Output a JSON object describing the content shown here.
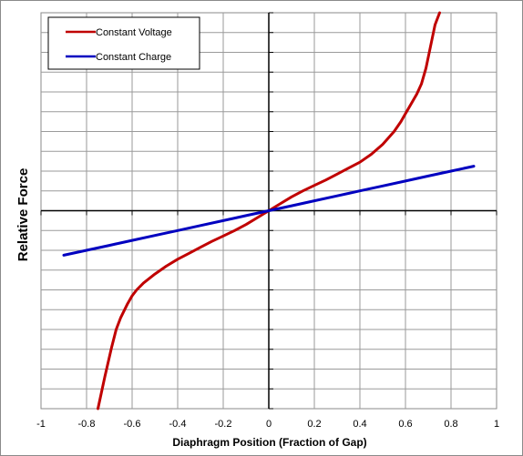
{
  "chart_data": {
    "type": "line",
    "title": "",
    "xlabel": "Diaphragm Position (Fraction of Gap)",
    "ylabel": "Relative Force",
    "xlim": [
      -1,
      1
    ],
    "ylim": [
      -1,
      1
    ],
    "x_ticks": [
      "-1",
      "-0.8",
      "-0.6",
      "-0.4",
      "-0.2",
      "0",
      "0.2",
      "0.4",
      "0.6",
      "0.8",
      "1"
    ],
    "grid": true,
    "legend_position": "top-left",
    "series": [
      {
        "name": "Constant Voltage",
        "color": "#c00000",
        "x": [
          -0.75,
          -0.72,
          -0.69,
          -0.67,
          -0.65,
          -0.62,
          -0.6,
          -0.58,
          -0.55,
          -0.5,
          -0.45,
          -0.4,
          -0.35,
          -0.3,
          -0.25,
          -0.2,
          -0.15,
          -0.1,
          -0.05,
          0,
          0.05,
          0.1,
          0.15,
          0.2,
          0.25,
          0.3,
          0.35,
          0.4,
          0.45,
          0.5,
          0.55,
          0.58,
          0.6,
          0.62,
          0.65,
          0.67,
          0.69,
          0.71,
          0.73,
          0.75
        ],
        "y": [
          -1.0,
          -0.84,
          -0.69,
          -0.6,
          -0.54,
          -0.47,
          -0.43,
          -0.4,
          -0.365,
          -0.32,
          -0.28,
          -0.245,
          -0.215,
          -0.185,
          -0.155,
          -0.128,
          -0.1,
          -0.07,
          -0.035,
          0,
          0.035,
          0.07,
          0.1,
          0.128,
          0.155,
          0.185,
          0.215,
          0.245,
          0.285,
          0.335,
          0.4,
          0.45,
          0.49,
          0.53,
          0.59,
          0.64,
          0.72,
          0.83,
          0.94,
          1.0
        ]
      },
      {
        "name": "Constant Charge",
        "color": "#0000c0",
        "x": [
          -0.9,
          -0.8,
          -0.7,
          -0.6,
          -0.5,
          -0.4,
          -0.3,
          -0.2,
          -0.1,
          0,
          0.1,
          0.2,
          0.3,
          0.4,
          0.5,
          0.6,
          0.7,
          0.8,
          0.9
        ],
        "y": [
          -0.225,
          -0.2,
          -0.175,
          -0.15,
          -0.125,
          -0.1,
          -0.075,
          -0.05,
          -0.025,
          0,
          0.025,
          0.05,
          0.075,
          0.1,
          0.125,
          0.15,
          0.175,
          0.2,
          0.225
        ]
      }
    ]
  }
}
